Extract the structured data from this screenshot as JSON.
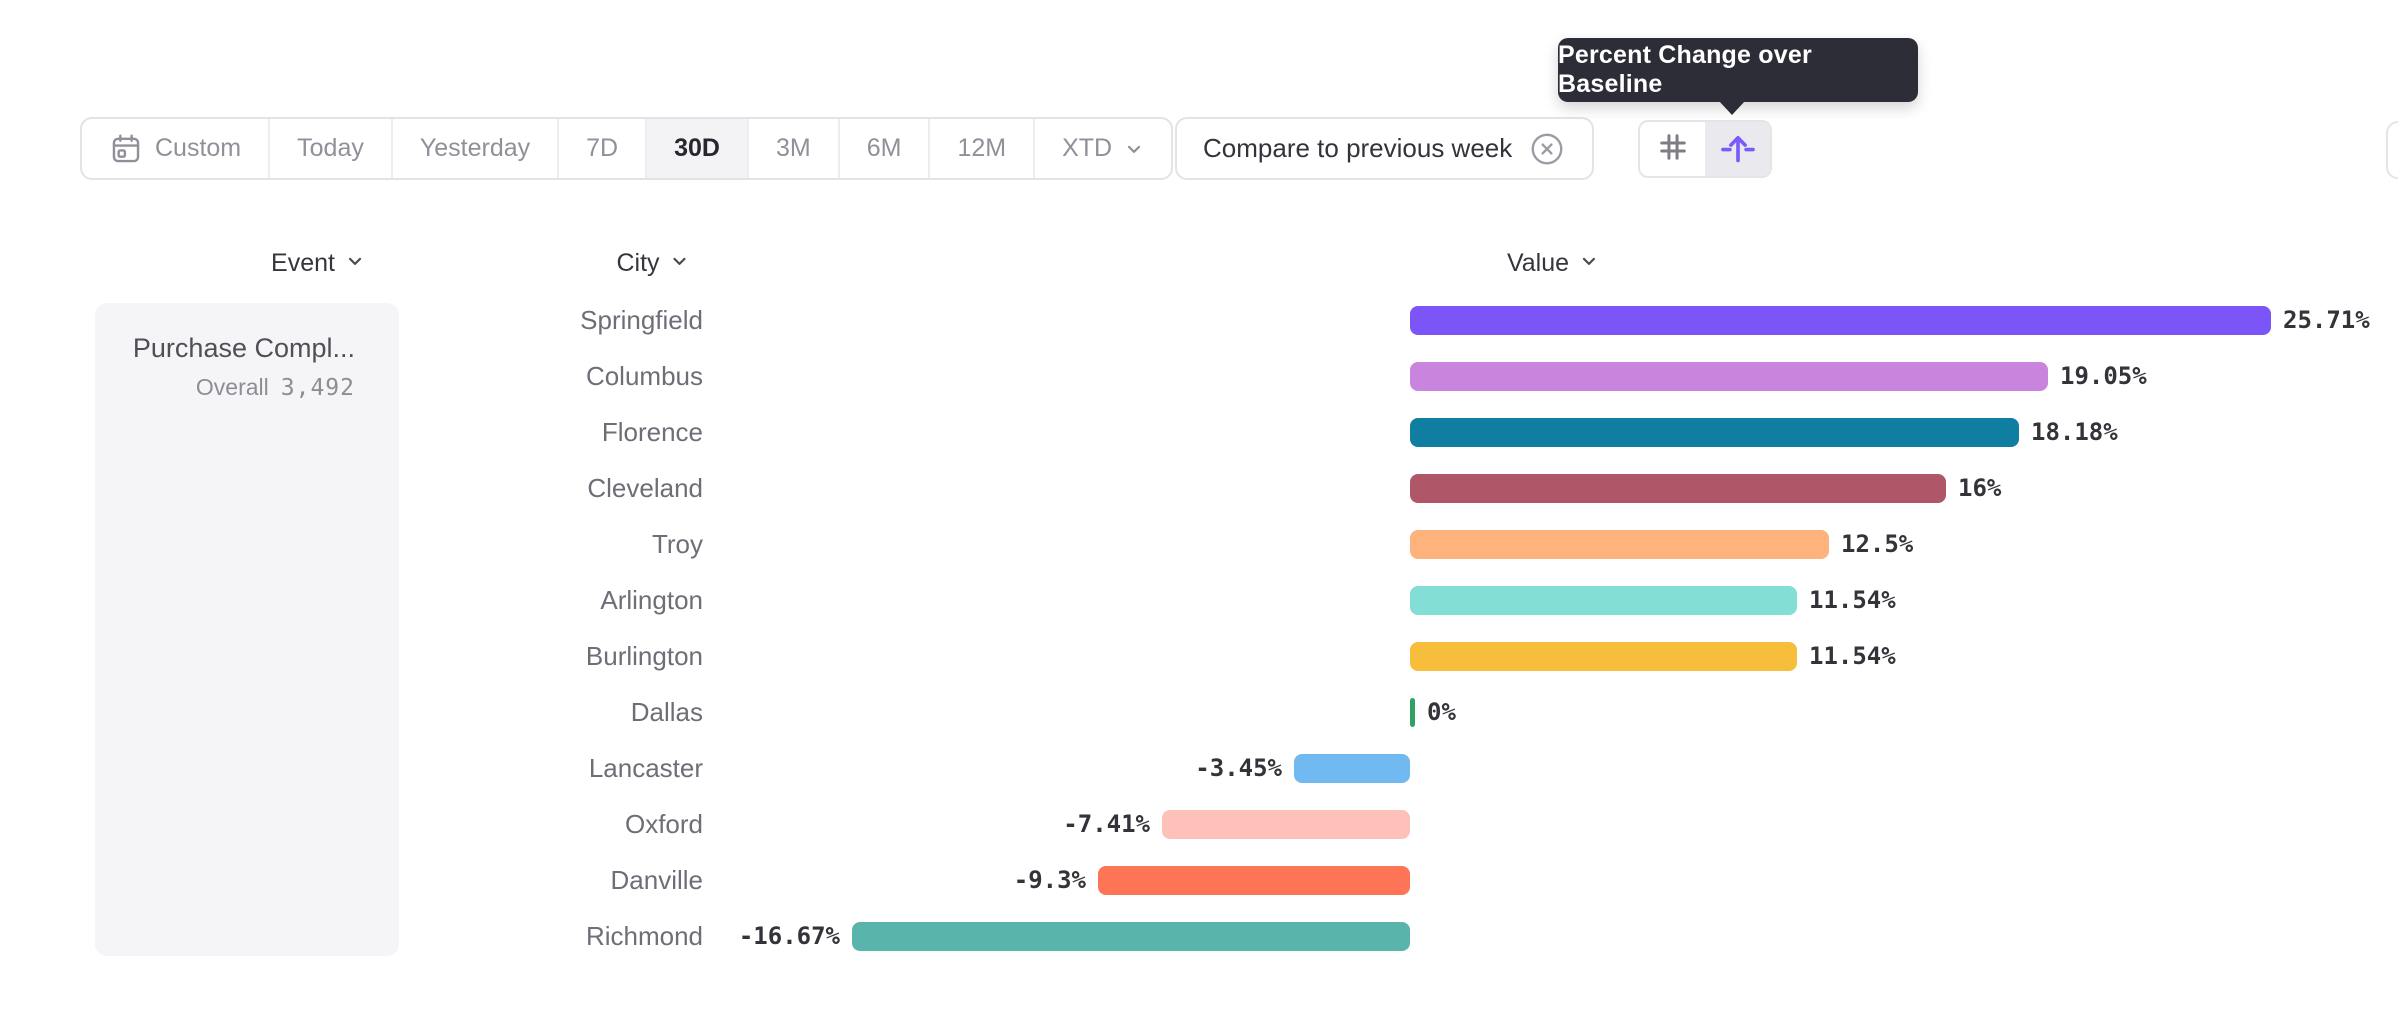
{
  "tooltip": {
    "text": "Percent Change over Baseline",
    "bg_color": "#2d2d37"
  },
  "toolbar": {
    "date_ranges": [
      {
        "label": "Custom",
        "icon": "calendar-icon",
        "selected": false
      },
      {
        "label": "Today",
        "selected": false
      },
      {
        "label": "Yesterday",
        "selected": false
      },
      {
        "label": "7D",
        "selected": false
      },
      {
        "label": "30D",
        "selected": true
      },
      {
        "label": "3M",
        "selected": false
      },
      {
        "label": "6M",
        "selected": false
      },
      {
        "label": "12M",
        "selected": false
      },
      {
        "label": "XTD",
        "selected": false,
        "chevron": "chevron-down-icon"
      }
    ],
    "compare_chip": {
      "label": "Compare to previous week",
      "close_icon": "x-circle-icon"
    },
    "view_toggle": [
      {
        "icon": "hash-grid-icon",
        "selected": false
      },
      {
        "icon": "baseline-arrow-icon",
        "selected": true
      }
    ]
  },
  "columns": [
    {
      "label": "Event",
      "icon": "chevron-down-icon"
    },
    {
      "label": "City",
      "icon": "chevron-down-icon"
    },
    {
      "label": "Value",
      "icon": "chevron-down-icon"
    }
  ],
  "event_panel": {
    "name": "Purchase Compl...",
    "metric_label": "Overall",
    "metric_value": "3,492"
  },
  "colors": {
    "accent_purple": "#7a5af8",
    "selected_segment_bg": "#f3f3f5",
    "panel_bg": "#f5f5f7",
    "border": "#e3e3e7",
    "tooltip_bg": "#2d2d37",
    "zero_bar_green": "#2fa163"
  },
  "chart_data": {
    "type": "bar",
    "orientation": "horizontal",
    "series_name": "Percent Change over Baseline",
    "unit": "%",
    "baseline": 0,
    "categories": [
      "Springfield",
      "Columbus",
      "Florence",
      "Cleveland",
      "Troy",
      "Arlington",
      "Burlington",
      "Dallas",
      "Lancaster",
      "Oxford",
      "Danville",
      "Richmond"
    ],
    "values": [
      25.71,
      19.05,
      18.18,
      16,
      12.5,
      11.54,
      11.54,
      0,
      -3.45,
      -7.41,
      -9.3,
      -16.67
    ],
    "value_labels": [
      "25.71%",
      "19.05%",
      "18.18%",
      "16%",
      "12.5%",
      "11.54%",
      "11.54%",
      "0%",
      "-3.45%",
      "-7.41%",
      "-9.3%",
      "-16.67%"
    ],
    "colors": [
      "#7b55f7",
      "#c984de",
      "#107ea0",
      "#af5768",
      "#feb27c",
      "#83ded5",
      "#f6be3b",
      "#2fa163",
      "#70baf1",
      "#fdc1b9",
      "#fd7456",
      "#59b4ab"
    ]
  }
}
